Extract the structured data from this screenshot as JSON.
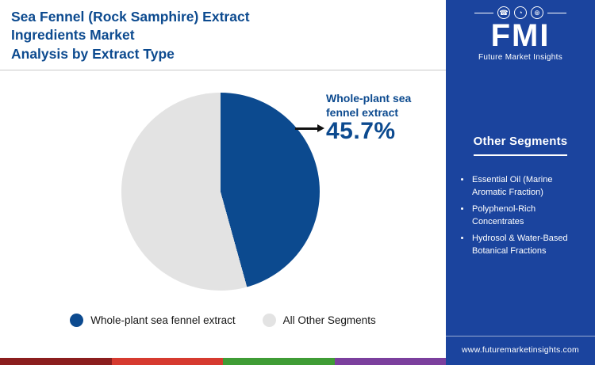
{
  "header": {
    "title_line1": "Sea Fennel (Rock Samphire) Extract",
    "title_line2": "Ingredients Market",
    "title_line3": "Analysis by Extract Type"
  },
  "chart_data": {
    "type": "pie",
    "title": "Sea Fennel (Rock Samphire) Extract Ingredients Market Analysis by Extract Type",
    "slices": [
      {
        "label": "Whole-plant sea fennel extract",
        "value": 45.7,
        "color": "#0c4a8f"
      },
      {
        "label": "All Other Segments",
        "value": 54.3,
        "color": "#e3e3e3"
      }
    ],
    "start_angle_deg": 0,
    "direction": "clockwise",
    "legend_position": "bottom",
    "annotation": {
      "label": "Whole-plant sea fennel extract",
      "value_label": "45.7%"
    }
  },
  "sidebar": {
    "logo": {
      "text": "FMI",
      "subtext": "Future Market Insights",
      "icons": {
        "phone": "☎",
        "chart": "◔",
        "globe": "⊕"
      }
    },
    "heading": "Other Segments",
    "items": [
      "Essential Oil (Marine Aromatic Fraction)",
      "Polyphenol-Rich Concentrates",
      "Hydrosol & Water-Based Botanical Fractions"
    ],
    "footer_url": "www.futuremarketinsights.com"
  },
  "colors": {
    "brand_blue": "#0c4a8f",
    "sidebar_blue": "#1b449e",
    "slice_gray": "#e3e3e3",
    "arrow": "#111111",
    "stripe": [
      "#8b1e1e",
      "#d63a2f",
      "#3f9c35",
      "#7b3f9d"
    ]
  }
}
